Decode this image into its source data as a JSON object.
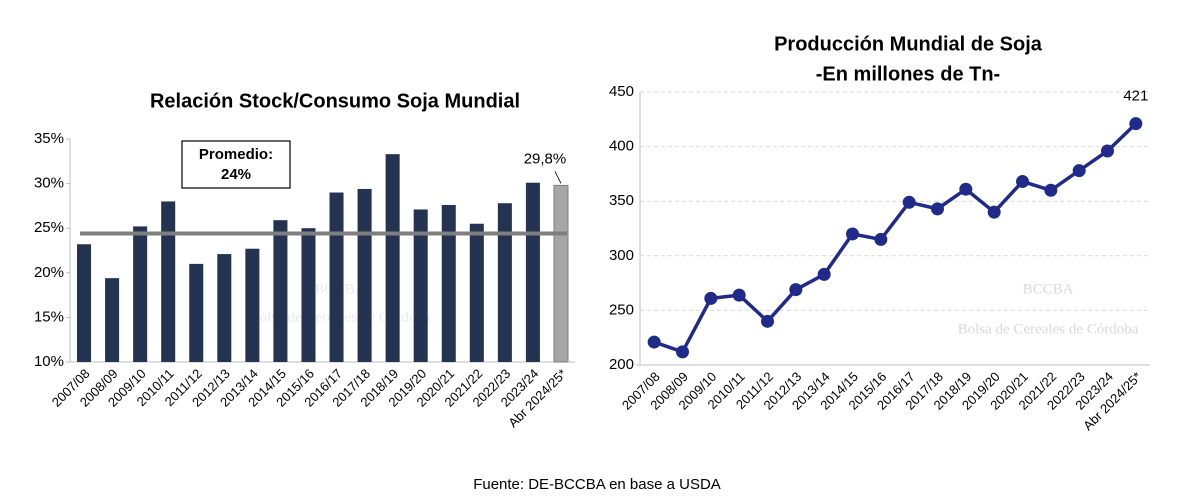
{
  "chart_data": [
    {
      "type": "bar",
      "title": "Relación Stock/Consumo Soja Mundial",
      "categories": [
        "2007/08",
        "2008/09",
        "2009/10",
        "2010/11",
        "2011/12",
        "2012/13",
        "2013/14",
        "2014/15",
        "2015/16",
        "2016/17",
        "2017/18",
        "2018/19",
        "2019/20",
        "2020/21",
        "2021/22",
        "2022/23",
        "2023/24",
        "Abr 2024/25*"
      ],
      "values": [
        23.2,
        19.4,
        25.2,
        28.0,
        21.0,
        22.1,
        22.7,
        25.9,
        25.0,
        29.0,
        29.4,
        33.3,
        27.1,
        27.6,
        25.5,
        27.8,
        30.1,
        29.8
      ],
      "value_labels": [
        null,
        null,
        null,
        null,
        null,
        null,
        null,
        null,
        null,
        null,
        null,
        null,
        null,
        null,
        null,
        null,
        null,
        "29,8%"
      ],
      "colors": [
        "#243352",
        "#243352",
        "#243352",
        "#243352",
        "#243352",
        "#243352",
        "#243352",
        "#243352",
        "#243352",
        "#243352",
        "#243352",
        "#243352",
        "#243352",
        "#243352",
        "#243352",
        "#243352",
        "#243352",
        "#a6a6a6"
      ],
      "average": {
        "value": 24.4,
        "label_title": "Promedio:",
        "label": "24%",
        "color": "#7f7f7f"
      },
      "ylim": [
        10,
        35
      ],
      "yticks": [
        {
          "value": 10,
          "label": "10%"
        },
        {
          "value": 15,
          "label": "15%"
        },
        {
          "value": 20,
          "label": "20%"
        },
        {
          "value": 25,
          "label": "25%"
        },
        {
          "value": 30,
          "label": "30%"
        },
        {
          "value": 35,
          "label": "35%"
        }
      ],
      "grid": false
    },
    {
      "type": "line",
      "title": "Producción Mundial de Soja",
      "subtitle": "-En millones de Tn-",
      "categories": [
        "2007/08",
        "2008/09",
        "2009/10",
        "2010/11",
        "2011/12",
        "2012/13",
        "2013/14",
        "2014/15",
        "2015/16",
        "2016/17",
        "2017/18",
        "2018/19",
        "2019/20",
        "2020/21",
        "2021/22",
        "2022/23",
        "2023/24",
        "Abr 2024/25*"
      ],
      "values": [
        221,
        212,
        261,
        264,
        240,
        269,
        283,
        320,
        315,
        349,
        343,
        361,
        340,
        368,
        360,
        378,
        396,
        421
      ],
      "value_labels": [
        null,
        null,
        null,
        null,
        null,
        null,
        null,
        null,
        null,
        null,
        null,
        null,
        null,
        null,
        null,
        null,
        null,
        "421"
      ],
      "color": "#1f2a8a",
      "ylim": [
        200,
        450
      ],
      "yticks": [
        200,
        250,
        300,
        350,
        400,
        450
      ],
      "grid": true
    }
  ],
  "watermark": {
    "logo": "BCCBA",
    "name": "Bolsa de Cereales de Córdoba"
  },
  "source": "Fuente: DE-BCCBA en base a USDA"
}
